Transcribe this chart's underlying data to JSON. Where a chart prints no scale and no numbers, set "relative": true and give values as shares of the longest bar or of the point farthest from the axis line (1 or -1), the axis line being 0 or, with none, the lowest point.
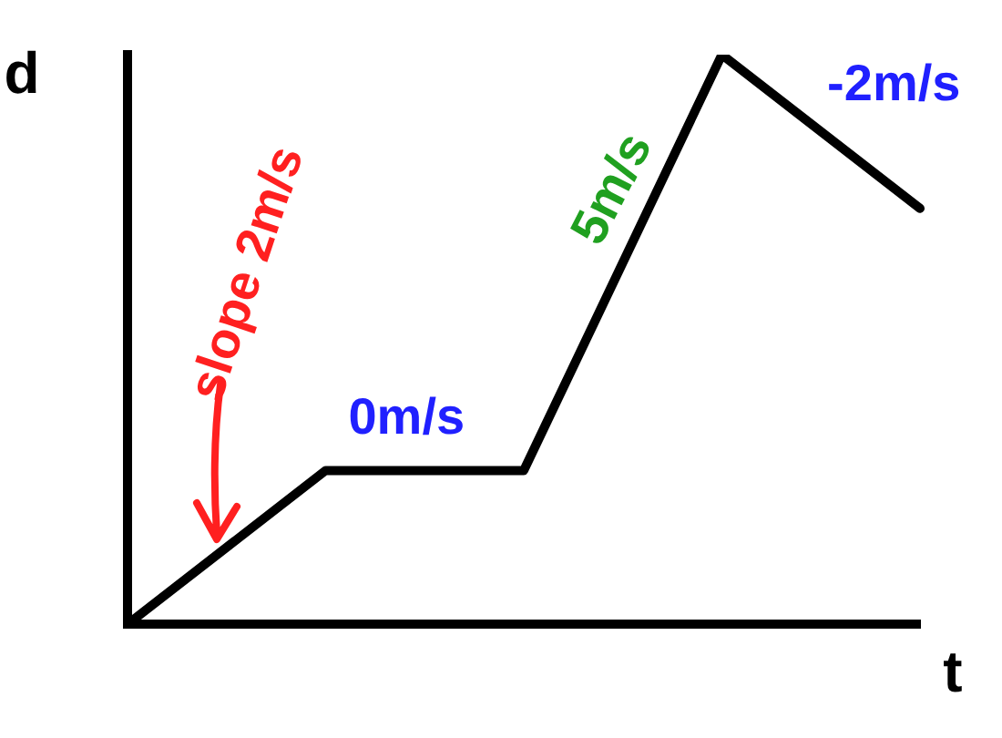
{
  "chart_data": {
    "type": "line",
    "relative": true,
    "xlabel": "t",
    "ylabel": "d",
    "categories": [
      null,
      null,
      null,
      null,
      null
    ],
    "series": [
      {
        "color": "#000000",
        "values": [
          0,
          0.27,
          0.27,
          1,
          0.73
        ]
      }
    ],
    "annotations": [
      "slope 2m/s",
      "0m/s",
      "5m/s",
      "-2m/s"
    ],
    "marker": "none",
    "line_style": "solid",
    "legend": false,
    "grid": false
  }
}
